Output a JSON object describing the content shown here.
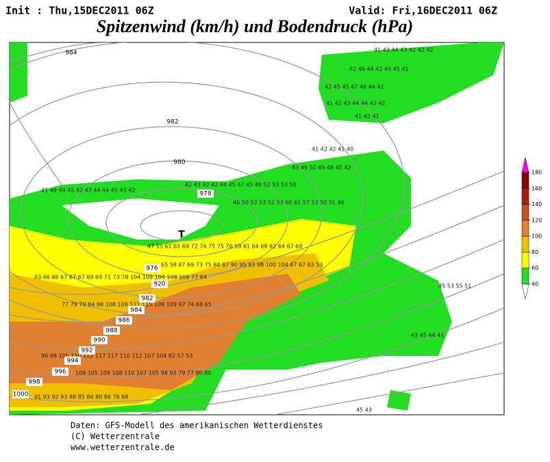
{
  "header": {
    "init": "Init : Thu,15DEC2011 06Z",
    "valid": "Valid: Fri,16DEC2011 06Z",
    "title": "Spitzenwind (km/h) und Bodendruck (hPa)"
  },
  "colorbar": {
    "ticks": [
      180,
      160,
      140,
      120,
      100,
      80,
      60,
      40
    ],
    "colors": [
      "#ff00ff",
      "#8b0000",
      "#b01818",
      "#c8501e",
      "#e08030",
      "#f0c000",
      "#ffff00",
      "#22dd22"
    ]
  },
  "low_marker": "T",
  "isobar_labels": [
    "984",
    "982",
    "980",
    "978",
    "976",
    "920",
    "982",
    "984",
    "986",
    "988",
    "990",
    "992",
    "994",
    "996",
    "998",
    "1000"
  ],
  "wind_labels": [
    "41 43 44 43 42 42 42",
    "42 46 44 42 44 45 41",
    "42 45 45 47 46 44 42",
    "41 42 43 44 44 43 42",
    "41 42 41",
    "41 42 42 41 40",
    "43 49 50 49 48 45 42",
    "41 46 49 45 42 43 44 44 45 43 42",
    "42 43 42 42 44 45 47 45 49 52 53 53 50",
    "46 50 53 53 52 53 60 61 57 53 50 51 46",
    "47 55 61 65 69 72 74 75 75 70 59 61 64 68 62 64 67 69",
    "65 58 67 69 73 75 84 87 90 95 93 98 100 104 87 67 63 53",
    "63 66 66 67 67 67 69 69 71 73 78 104 109 104 108 109 77 64",
    "77 79 79 84 98 108 109 111 115 109 109 97 74 68 65",
    "96 98 105 110 112 117 117 110 112 107 104 82 57 53",
    "109 105 109 108 110 107 105 98 93 79 77 80 80",
    "91 93 92 93 88 85 84 80 86 76 68",
    "45 53 55 51",
    "43 45 44 41",
    "45 43"
  ],
  "footer": [
    "Daten: GFS-Modell des amerikanischen Wetterdienstes",
    "(C) Wetterzentrale",
    "www.wetterzentrale.de"
  ]
}
